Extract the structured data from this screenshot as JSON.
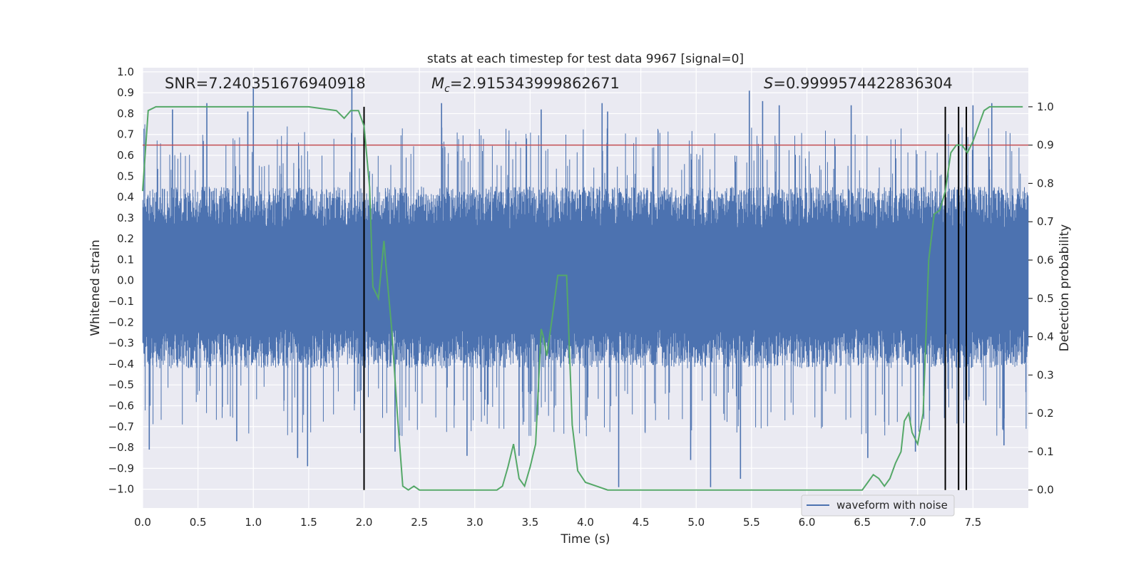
{
  "chart_data": {
    "type": "line",
    "title": "stats at each timestep for test data 9967 [signal=0]",
    "xlabel": "Time (s)",
    "ylabel": "Whitened strain",
    "y2label": "Detection probability",
    "xlim": [
      0.0,
      8.0
    ],
    "ylim": [
      -1.09,
      1.02
    ],
    "y2lim": [
      -0.047,
      1.102
    ],
    "x_ticks": [
      0.0,
      0.5,
      1.0,
      1.5,
      2.0,
      2.5,
      3.0,
      3.5,
      4.0,
      4.5,
      5.0,
      5.5,
      6.0,
      6.5,
      7.0,
      7.5
    ],
    "x_tick_labels": [
      "0.0",
      "0.5",
      "1.0",
      "1.5",
      "2.0",
      "2.5",
      "3.0",
      "3.5",
      "4.0",
      "4.5",
      "5.0",
      "5.5",
      "6.0",
      "6.5",
      "7.0",
      "7.5"
    ],
    "y_ticks": [
      1.0,
      0.9,
      0.8,
      0.7,
      0.6,
      0.5,
      0.4,
      0.3,
      0.2,
      0.1,
      0.0,
      -0.1,
      -0.2,
      -0.3,
      -0.4,
      -0.5,
      -0.6,
      -0.7,
      -0.8,
      -0.9,
      -1.0
    ],
    "y_tick_labels": [
      "1.0",
      "0.9",
      "0.8",
      "0.7",
      "0.6",
      "0.5",
      "0.4",
      "0.3",
      "0.2",
      "0.1",
      "0.0",
      "−0.1",
      "−0.2",
      "−0.3",
      "−0.4",
      "−0.5",
      "−0.6",
      "−0.7",
      "−0.8",
      "−0.9",
      "−1.0"
    ],
    "y2_ticks": [
      1.0,
      0.9,
      0.8,
      0.7,
      0.6,
      0.5,
      0.4,
      0.3,
      0.2,
      0.1,
      0.0
    ],
    "y2_tick_labels": [
      "1.0",
      "0.9",
      "0.8",
      "0.7",
      "0.6",
      "0.5",
      "0.4",
      "0.3",
      "0.2",
      "0.1",
      "0.0"
    ],
    "threshold": 0.9,
    "detection_lines_x": [
      2.0,
      7.25,
      7.37,
      7.44
    ],
    "annotations": {
      "snr": "SNR=7.240351676940918",
      "mc_symbol": "M",
      "mc_sub": "c",
      "mc_value": "=2.915343999862671",
      "s_symbol": "S",
      "s_value": "=0.9999574422836304"
    },
    "legend": {
      "label": "waveform with noise",
      "position": "lower-right"
    },
    "series": [
      {
        "name": "waveform with noise",
        "axis": "left",
        "color": "#4c72b0",
        "style": "dense noise",
        "envelope_typical": [
          -0.42,
          0.45
        ],
        "extremes_x": [
          0.0,
          7.99
        ],
        "peaks": [
          {
            "x": 0.27,
            "y": 0.82
          },
          {
            "x": 0.58,
            "y": 0.85
          },
          {
            "x": 0.95,
            "y": 0.81
          },
          {
            "x": 1.0,
            "y": 0.92
          },
          {
            "x": 1.89,
            "y": 0.95
          },
          {
            "x": 2.7,
            "y": 0.85
          },
          {
            "x": 3.6,
            "y": 0.82
          },
          {
            "x": 4.15,
            "y": 0.85
          },
          {
            "x": 4.2,
            "y": 0.81
          },
          {
            "x": 5.48,
            "y": 0.91
          },
          {
            "x": 5.6,
            "y": 0.86
          },
          {
            "x": 5.75,
            "y": 0.84
          },
          {
            "x": 6.4,
            "y": 0.84
          },
          {
            "x": 7.5,
            "y": 0.84
          },
          {
            "x": 7.67,
            "y": 0.85
          }
        ],
        "troughs": [
          {
            "x": 0.06,
            "y": -0.81
          },
          {
            "x": 0.85,
            "y": -0.77
          },
          {
            "x": 1.4,
            "y": -0.85
          },
          {
            "x": 1.49,
            "y": -0.89
          },
          {
            "x": 2.28,
            "y": -0.82
          },
          {
            "x": 2.93,
            "y": -0.84
          },
          {
            "x": 3.4,
            "y": -0.84
          },
          {
            "x": 4.3,
            "y": -0.99
          },
          {
            "x": 4.95,
            "y": -0.86
          },
          {
            "x": 5.13,
            "y": -0.99
          },
          {
            "x": 5.4,
            "y": -0.95
          },
          {
            "x": 6.55,
            "y": -0.85
          },
          {
            "x": 6.98,
            "y": -0.82
          },
          {
            "x": 7.78,
            "y": -0.79
          }
        ]
      },
      {
        "name": "Detection probability",
        "axis": "right",
        "color": "#55a868",
        "x": [
          0.0,
          0.05,
          0.12,
          0.2,
          0.5,
          1.0,
          1.5,
          1.75,
          1.82,
          1.88,
          1.95,
          2.0,
          2.05,
          2.08,
          2.13,
          2.18,
          2.2,
          2.25,
          2.3,
          2.35,
          2.4,
          2.45,
          2.5,
          2.6,
          3.0,
          3.2,
          3.25,
          3.3,
          3.35,
          3.4,
          3.45,
          3.5,
          3.55,
          3.6,
          3.62,
          3.65,
          3.7,
          3.75,
          3.8,
          3.83,
          3.88,
          3.93,
          4.0,
          4.1,
          4.2,
          4.5,
          4.7,
          5.0,
          5.3,
          5.5,
          6.0,
          6.3,
          6.5,
          6.55,
          6.6,
          6.65,
          6.7,
          6.75,
          6.8,
          6.85,
          6.88,
          6.92,
          6.95,
          7.0,
          7.05,
          7.1,
          7.15,
          7.2,
          7.25,
          7.3,
          7.35,
          7.4,
          7.45,
          7.5,
          7.55,
          7.6,
          7.65,
          7.7,
          7.75,
          7.8,
          7.95
        ],
        "values": [
          0.78,
          0.99,
          1.0,
          1.0,
          1.0,
          1.0,
          1.0,
          0.99,
          0.97,
          0.99,
          0.99,
          0.95,
          0.79,
          0.53,
          0.5,
          0.65,
          0.58,
          0.42,
          0.2,
          0.01,
          0.0,
          0.01,
          0.0,
          0.0,
          0.0,
          0.0,
          0.01,
          0.06,
          0.12,
          0.03,
          0.01,
          0.06,
          0.12,
          0.42,
          0.4,
          0.35,
          0.45,
          0.56,
          0.56,
          0.56,
          0.17,
          0.05,
          0.02,
          0.01,
          0.0,
          0.0,
          0.0,
          0.0,
          0.0,
          0.0,
          0.0,
          0.0,
          0.0,
          0.02,
          0.04,
          0.03,
          0.01,
          0.03,
          0.07,
          0.1,
          0.18,
          0.2,
          0.15,
          0.12,
          0.2,
          0.6,
          0.72,
          0.73,
          0.78,
          0.88,
          0.9,
          0.9,
          0.88,
          0.91,
          0.95,
          0.99,
          1.0,
          1.0,
          1.0,
          1.0,
          1.0
        ]
      }
    ]
  }
}
